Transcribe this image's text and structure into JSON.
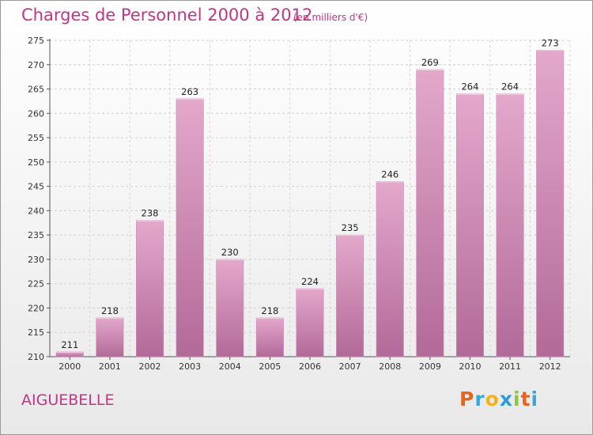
{
  "header": {
    "title": "Charges de Personnel 2000 à 2012",
    "subtitle": "(en milliers d'€)"
  },
  "footer": {
    "commune": "AIGUEBELLE",
    "logo": {
      "letters": [
        "P",
        "r",
        "o",
        "x",
        "i",
        "t",
        "i"
      ],
      "colors": [
        "#e8641b",
        "#3aa7d8",
        "#f2b21c",
        "#2e9bd6",
        "#8cc63f",
        "#e8641b",
        "#3aa7d8"
      ]
    }
  },
  "colors": {
    "accent": "#c13585",
    "bar_top": "#e4a8cc",
    "bar_bottom": "#b26a98"
  },
  "chart_data": {
    "type": "bar",
    "title": "Charges de Personnel 2000 à 2012",
    "subtitle": "(en milliers d'€)",
    "categories": [
      "2000",
      "2001",
      "2002",
      "2003",
      "2004",
      "2005",
      "2006",
      "2007",
      "2008",
      "2009",
      "2010",
      "2011",
      "2012"
    ],
    "values": [
      211,
      218,
      238,
      263,
      230,
      218,
      224,
      235,
      246,
      269,
      264,
      264,
      273
    ],
    "ylim": [
      210,
      275
    ],
    "yticks": [
      210,
      215,
      220,
      225,
      230,
      235,
      240,
      245,
      250,
      255,
      260,
      265,
      270,
      275
    ],
    "grid": true,
    "data_labels": true
  }
}
